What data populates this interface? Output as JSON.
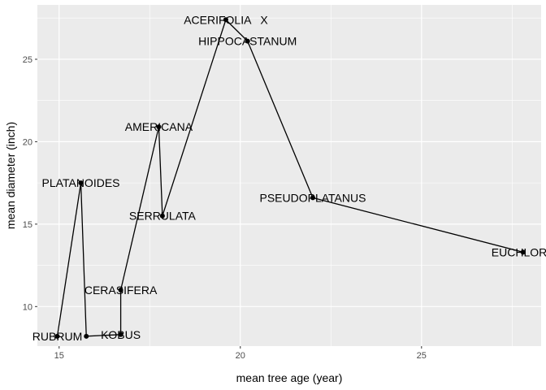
{
  "chart_data": {
    "type": "line",
    "title": "",
    "xlabel": "mean tree age (year)",
    "ylabel": "mean diameter (inch)",
    "xlim": [
      14.4,
      28.3
    ],
    "ylim": [
      7.6,
      28.3
    ],
    "x_ticks": [
      15,
      20,
      25
    ],
    "y_ticks": [
      10,
      15,
      20,
      25
    ],
    "x_tick_labels": [
      "15",
      "20",
      "25"
    ],
    "y_tick_labels": [
      "10",
      "15",
      "20",
      "25"
    ],
    "grid": true,
    "legend": "none",
    "series": [
      {
        "points": [
          {
            "label": "RUBRUM",
            "x": 14.95,
            "y": 8.2
          },
          {
            "label": "PLATANOIDES",
            "x": 15.6,
            "y": 17.5
          },
          {
            "label": "",
            "x": 15.75,
            "y": 8.2
          },
          {
            "label": "KOBUS",
            "x": 16.7,
            "y": 8.3
          },
          {
            "label": "CERASIFERA",
            "x": 16.7,
            "y": 11.0
          },
          {
            "label": "AMERICANA",
            "x": 17.75,
            "y": 20.9
          },
          {
            "label": "SERRULATA",
            "x": 17.85,
            "y": 15.5
          },
          {
            "label": "ACERIFOLIA   X",
            "x": 19.6,
            "y": 27.4
          },
          {
            "label": "HIPPOCASTANUM",
            "x": 20.2,
            "y": 26.1
          },
          {
            "label": "PSEUDOPLATANUS",
            "x": 22.0,
            "y": 16.6
          },
          {
            "label": "EUCHLORA",
            "x": 27.8,
            "y": 13.3
          }
        ]
      }
    ]
  },
  "colors": {
    "panel_bg": "#ebebeb",
    "grid_major": "#ffffff",
    "line": "#000000",
    "point": "#000000"
  }
}
